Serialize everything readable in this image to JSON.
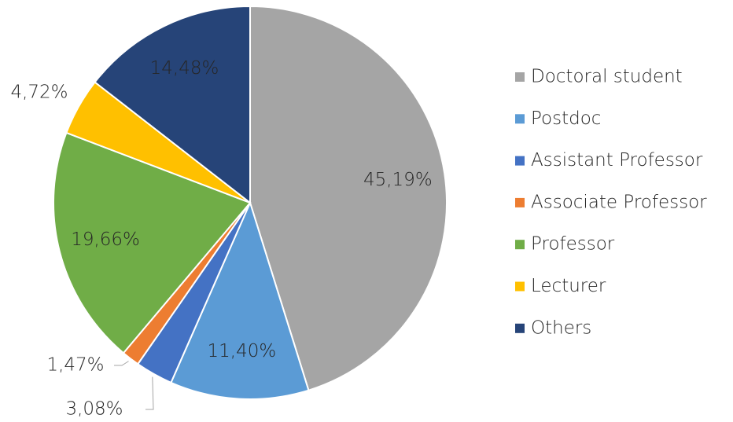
{
  "chart_data": {
    "type": "pie",
    "categories": [
      "Doctoral student",
      "Postdoc",
      "Assistant Professor",
      "Associate Professor",
      "Professor",
      "Lecturer",
      "Others"
    ],
    "values": [
      45.19,
      11.4,
      3.08,
      1.47,
      19.66,
      4.72,
      14.48
    ],
    "value_labels": [
      "45,19%",
      "11,40%",
      "3,08%",
      "1,47%",
      "19,66%",
      "4,72%",
      "14,48%"
    ],
    "colors": [
      "#a5a5a5",
      "#5b9bd5",
      "#4472c4",
      "#ed7d31",
      "#70ad47",
      "#ffc000",
      "#264478"
    ],
    "legend": "right"
  }
}
